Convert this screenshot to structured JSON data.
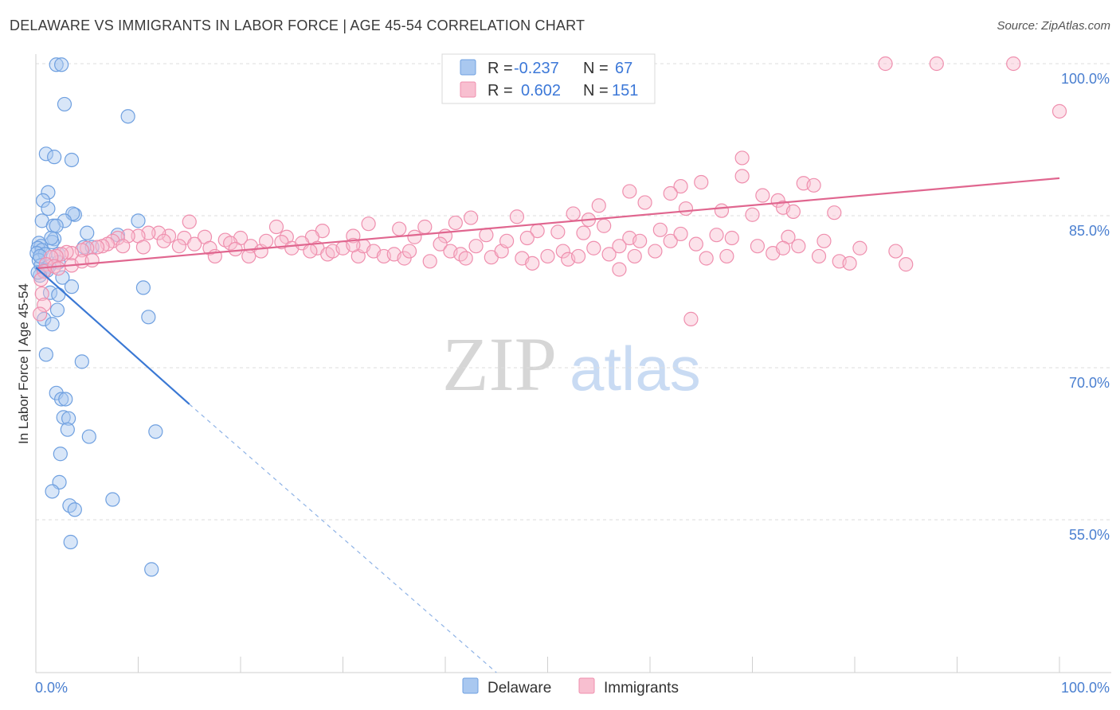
{
  "title": "DELAWARE VS IMMIGRANTS IN LABOR FORCE | AGE 45-54 CORRELATION CHART",
  "source": "Source: ZipAtlas.com",
  "watermark": {
    "zip": "ZIP",
    "atlas": "atlas"
  },
  "colors": {
    "delaware_fill": "#a9c8f0",
    "delaware_stroke": "#6fa0e0",
    "delaware_line": "#3a78d4",
    "immigrants_fill": "#f8bfd0",
    "immigrants_stroke": "#ef8fae",
    "immigrants_line": "#e0668f",
    "accent_text": "#3c78d8"
  },
  "legend_top": {
    "rows": [
      {
        "r_label": "R = ",
        "r_value": "-0.237",
        "n_label": "N = ",
        "n_value": "67"
      },
      {
        "r_label": "R = ",
        "r_value": "0.602",
        "n_label": "N = ",
        "n_value": "151"
      }
    ]
  },
  "legend_bottom": [
    "Delaware",
    "Immigrants"
  ],
  "chart_data": {
    "type": "scatter",
    "title": "DELAWARE VS IMMIGRANTS IN LABOR FORCE | AGE 45-54 CORRELATION CHART",
    "xlabel": "",
    "ylabel": "In Labor Force | Age 45-54",
    "xlim": [
      0,
      100
    ],
    "ylim": [
      40,
      100
    ],
    "x_tick_labels": [
      "0.0%",
      "100.0%"
    ],
    "y_ticks": [
      55,
      70,
      85,
      100
    ],
    "y_tick_labels": [
      "55.0%",
      "70.0%",
      "85.0%",
      "100.0%"
    ],
    "grid": true,
    "legend_placement": "top-center",
    "series": [
      {
        "name": "Delaware",
        "r": -0.237,
        "n": 67,
        "trend": {
          "x0": 0.0,
          "y0": 79.9,
          "x1": 15.0,
          "y1": 66.4,
          "dashed_to_x": 45.0,
          "dashed_to_y": 39.4
        },
        "points": [
          [
            2.0,
            99.9
          ],
          [
            2.5,
            99.9
          ],
          [
            2.8,
            96.0
          ],
          [
            9.0,
            94.8
          ],
          [
            1.0,
            91.1
          ],
          [
            1.8,
            90.8
          ],
          [
            3.5,
            90.5
          ],
          [
            1.2,
            87.3
          ],
          [
            0.7,
            86.5
          ],
          [
            1.2,
            85.7
          ],
          [
            3.8,
            85.1
          ],
          [
            3.6,
            85.2
          ],
          [
            0.6,
            84.5
          ],
          [
            2.8,
            84.5
          ],
          [
            10.0,
            84.5
          ],
          [
            1.7,
            84.0
          ],
          [
            2.0,
            84.0
          ],
          [
            5.0,
            83.3
          ],
          [
            8.0,
            83.1
          ],
          [
            1.8,
            82.7
          ],
          [
            1.6,
            82.4
          ],
          [
            0.3,
            82.3
          ],
          [
            0.5,
            82.0
          ],
          [
            0.2,
            81.8
          ],
          [
            4.7,
            81.9
          ],
          [
            5.5,
            81.9
          ],
          [
            0.6,
            81.6
          ],
          [
            0.1,
            81.3
          ],
          [
            0.9,
            81.2
          ],
          [
            2.2,
            81.2
          ],
          [
            0.3,
            80.6
          ],
          [
            2.2,
            80.4
          ],
          [
            0.5,
            80.1
          ],
          [
            1.3,
            80.0
          ],
          [
            0.8,
            79.6
          ],
          [
            1.1,
            79.6
          ],
          [
            0.4,
            79.1
          ],
          [
            2.6,
            78.9
          ],
          [
            3.5,
            78.0
          ],
          [
            10.5,
            77.9
          ],
          [
            1.4,
            77.4
          ],
          [
            2.2,
            77.2
          ],
          [
            2.1,
            75.7
          ],
          [
            0.8,
            74.8
          ],
          [
            11.0,
            75.0
          ],
          [
            1.6,
            74.3
          ],
          [
            1.0,
            71.3
          ],
          [
            4.5,
            70.6
          ],
          [
            2.0,
            67.5
          ],
          [
            2.5,
            66.9
          ],
          [
            2.9,
            66.9
          ],
          [
            2.7,
            65.1
          ],
          [
            3.2,
            65.0
          ],
          [
            3.1,
            63.9
          ],
          [
            5.2,
            63.2
          ],
          [
            11.7,
            63.7
          ],
          [
            2.4,
            61.5
          ],
          [
            2.3,
            58.7
          ],
          [
            1.6,
            57.8
          ],
          [
            7.5,
            57.0
          ],
          [
            3.3,
            56.4
          ],
          [
            3.8,
            56.0
          ],
          [
            3.4,
            52.8
          ],
          [
            11.3,
            50.1
          ],
          [
            0.2,
            79.4
          ],
          [
            0.4,
            81.0
          ],
          [
            1.5,
            82.8
          ]
        ]
      },
      {
        "name": "Immigrants",
        "r": 0.602,
        "n": 151,
        "trend": {
          "x0": 0.0,
          "y0": 79.8,
          "x1": 100.0,
          "y1": 88.7
        },
        "points": [
          [
            83.0,
            100.0
          ],
          [
            88.0,
            100.0
          ],
          [
            95.5,
            100.0
          ],
          [
            100.0,
            95.3
          ],
          [
            69.0,
            90.7
          ],
          [
            69.0,
            88.9
          ],
          [
            65.0,
            88.3
          ],
          [
            63.0,
            87.9
          ],
          [
            75.0,
            88.2
          ],
          [
            76.0,
            88.0
          ],
          [
            58.0,
            87.4
          ],
          [
            62.0,
            87.2
          ],
          [
            71.0,
            87.0
          ],
          [
            72.5,
            86.5
          ],
          [
            59.5,
            86.3
          ],
          [
            55.0,
            86.0
          ],
          [
            63.5,
            85.7
          ],
          [
            73.0,
            85.8
          ],
          [
            67.0,
            85.5
          ],
          [
            74.0,
            85.4
          ],
          [
            78.0,
            85.3
          ],
          [
            70.0,
            85.1
          ],
          [
            52.5,
            85.2
          ],
          [
            47.0,
            84.9
          ],
          [
            42.5,
            84.8
          ],
          [
            54.0,
            84.6
          ],
          [
            55.5,
            84.0
          ],
          [
            41.0,
            84.3
          ],
          [
            32.5,
            84.2
          ],
          [
            15.0,
            84.4
          ],
          [
            23.5,
            83.9
          ],
          [
            28.0,
            83.5
          ],
          [
            35.5,
            83.7
          ],
          [
            38.0,
            83.9
          ],
          [
            49.0,
            83.5
          ],
          [
            51.0,
            83.4
          ],
          [
            53.5,
            83.3
          ],
          [
            61.0,
            83.6
          ],
          [
            66.5,
            83.1
          ],
          [
            73.5,
            82.9
          ],
          [
            58.0,
            82.8
          ],
          [
            48.0,
            82.8
          ],
          [
            44.0,
            83.1
          ],
          [
            40.0,
            83.0
          ],
          [
            37.0,
            82.9
          ],
          [
            31.0,
            83.0
          ],
          [
            27.0,
            82.9
          ],
          [
            24.5,
            82.9
          ],
          [
            20.0,
            82.8
          ],
          [
            18.5,
            82.6
          ],
          [
            16.5,
            82.9
          ],
          [
            14.5,
            82.8
          ],
          [
            13.0,
            83.0
          ],
          [
            12.0,
            83.3
          ],
          [
            11.0,
            83.3
          ],
          [
            10.0,
            83.0
          ],
          [
            9.0,
            83.0
          ],
          [
            8.0,
            82.8
          ],
          [
            7.5,
            82.5
          ],
          [
            7.0,
            82.2
          ],
          [
            6.5,
            82.0
          ],
          [
            6.0,
            81.9
          ],
          [
            5.0,
            81.8
          ],
          [
            4.5,
            81.6
          ],
          [
            3.5,
            81.3
          ],
          [
            3.0,
            81.4
          ],
          [
            2.5,
            81.2
          ],
          [
            2.0,
            81.0
          ],
          [
            1.5,
            80.9
          ],
          [
            1.0,
            80.2
          ],
          [
            0.8,
            79.5
          ],
          [
            0.5,
            78.7
          ],
          [
            0.6,
            77.3
          ],
          [
            0.8,
            76.2
          ],
          [
            0.4,
            75.3
          ],
          [
            1.8,
            80.0
          ],
          [
            2.2,
            79.8
          ],
          [
            3.5,
            80.1
          ],
          [
            4.5,
            80.5
          ],
          [
            5.5,
            80.6
          ],
          [
            8.5,
            82.0
          ],
          [
            10.5,
            81.9
          ],
          [
            12.5,
            82.5
          ],
          [
            14.0,
            82.0
          ],
          [
            15.5,
            82.2
          ],
          [
            17.0,
            81.8
          ],
          [
            17.5,
            81.0
          ],
          [
            19.0,
            82.3
          ],
          [
            19.5,
            81.7
          ],
          [
            21.0,
            82.0
          ],
          [
            22.0,
            81.5
          ],
          [
            22.5,
            82.5
          ],
          [
            24.0,
            82.4
          ],
          [
            25.0,
            81.8
          ],
          [
            26.0,
            82.3
          ],
          [
            27.5,
            81.8
          ],
          [
            28.5,
            81.2
          ],
          [
            29.0,
            81.5
          ],
          [
            30.0,
            81.8
          ],
          [
            31.5,
            81.0
          ],
          [
            32.0,
            82.0
          ],
          [
            33.0,
            81.5
          ],
          [
            34.0,
            81.0
          ],
          [
            35.0,
            81.2
          ],
          [
            36.0,
            80.8
          ],
          [
            36.5,
            81.5
          ],
          [
            38.5,
            80.5
          ],
          [
            39.5,
            82.2
          ],
          [
            40.5,
            81.5
          ],
          [
            41.5,
            81.2
          ],
          [
            42.0,
            80.8
          ],
          [
            43.0,
            82.0
          ],
          [
            44.5,
            80.9
          ],
          [
            45.5,
            81.5
          ],
          [
            46.0,
            82.5
          ],
          [
            47.5,
            80.8
          ],
          [
            48.5,
            80.3
          ],
          [
            50.0,
            81.0
          ],
          [
            51.5,
            81.5
          ],
          [
            52.0,
            80.7
          ],
          [
            53.0,
            81.0
          ],
          [
            54.5,
            81.8
          ],
          [
            56.0,
            81.2
          ],
          [
            57.0,
            82.0
          ],
          [
            58.5,
            81.0
          ],
          [
            59.0,
            82.5
          ],
          [
            60.5,
            81.5
          ],
          [
            62.0,
            82.5
          ],
          [
            63.0,
            83.2
          ],
          [
            64.5,
            82.2
          ],
          [
            65.5,
            80.8
          ],
          [
            67.5,
            81.0
          ],
          [
            68.0,
            82.8
          ],
          [
            70.5,
            82.0
          ],
          [
            72.0,
            81.3
          ],
          [
            73.0,
            81.8
          ],
          [
            74.5,
            82.0
          ],
          [
            76.5,
            81.0
          ],
          [
            77.0,
            82.5
          ],
          [
            78.5,
            80.5
          ],
          [
            79.5,
            80.3
          ],
          [
            80.5,
            81.8
          ],
          [
            84.0,
            81.5
          ],
          [
            85.0,
            80.2
          ],
          [
            57.0,
            79.7
          ],
          [
            64.0,
            74.8
          ],
          [
            20.8,
            81.0
          ],
          [
            26.8,
            81.5
          ],
          [
            31.0,
            82.1
          ]
        ]
      }
    ]
  }
}
